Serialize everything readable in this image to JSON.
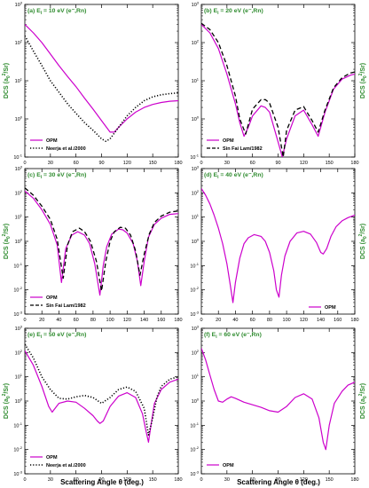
{
  "figure": {
    "xlabel": "Scattering Angle θ (deg.)",
    "ylabel_prefix": "DCS (a",
    "ylabel_sub": "0",
    "ylabel_sup": "2",
    "ylabel_suffix": "/Sr)"
  },
  "colors": {
    "opm": "#cc00cc",
    "reference": "#000000",
    "label_green": "#2e8b2e"
  },
  "chart_data": [
    {
      "type": "line",
      "id": "a",
      "title_prefix": "(a) E",
      "title_sub": "i",
      "title_suffix": " = 10 eV (e⁻,Rn)",
      "xlim": [
        0,
        180
      ],
      "ylim": [
        -1,
        3
      ],
      "yscale": "log",
      "xticks": [
        0,
        30,
        60,
        90,
        120,
        150,
        180
      ],
      "grid": false,
      "legend_position": "bottom-left",
      "series": [
        {
          "name": "OPM",
          "style": "solid",
          "x": [
            0,
            10,
            20,
            30,
            40,
            50,
            60,
            70,
            80,
            90,
            100,
            105,
            110,
            120,
            130,
            140,
            150,
            160,
            170,
            180
          ],
          "y": [
            300,
            180,
            100,
            50,
            25,
            13,
            7,
            3.5,
            1.8,
            0.9,
            0.45,
            0.45,
            0.6,
            1.0,
            1.5,
            2.0,
            2.4,
            2.7,
            2.9,
            3.0
          ]
        },
        {
          "name": "Neerja et al./2000",
          "style": "dotted",
          "x": [
            0,
            10,
            20,
            30,
            40,
            50,
            60,
            70,
            80,
            90,
            95,
            100,
            110,
            120,
            130,
            140,
            150,
            160,
            170,
            180
          ],
          "y": [
            150,
            60,
            25,
            10,
            5,
            2.5,
            1.4,
            0.8,
            0.5,
            0.3,
            0.26,
            0.3,
            0.6,
            1.2,
            2.0,
            3.0,
            3.8,
            4.3,
            4.6,
            4.8
          ]
        }
      ]
    },
    {
      "type": "line",
      "id": "b",
      "title_prefix": "(b) E",
      "title_sub": "i",
      "title_suffix": " = 20 eV (e⁻,Rn)",
      "xlim": [
        0,
        180
      ],
      "ylim": [
        -1,
        3
      ],
      "yscale": "log",
      "xticks": [
        0,
        30,
        60,
        90,
        120,
        150,
        180
      ],
      "grid": false,
      "legend_position": "bottom-left",
      "series": [
        {
          "name": "OPM",
          "style": "solid",
          "x": [
            0,
            10,
            20,
            30,
            40,
            45,
            50,
            55,
            60,
            70,
            75,
            80,
            90,
            95,
            100,
            110,
            120,
            130,
            137,
            145,
            155,
            165,
            175,
            180
          ],
          "y": [
            300,
            180,
            70,
            15,
            2.5,
            0.8,
            0.35,
            0.6,
            1.2,
            2.2,
            2.0,
            1.5,
            0.25,
            0.06,
            0.3,
            1.2,
            1.7,
            0.7,
            0.35,
            1.5,
            6,
            11,
            14,
            15
          ]
        },
        {
          "name": "Sin Fai Lam/1982",
          "style": "dashed",
          "x": [
            0,
            10,
            20,
            30,
            40,
            45,
            52,
            60,
            70,
            75,
            80,
            90,
            96,
            100,
            110,
            120,
            130,
            137,
            145,
            155,
            165,
            175,
            180
          ],
          "y": [
            320,
            220,
            100,
            25,
            4,
            1.0,
            0.4,
            1.8,
            3.2,
            3.2,
            2.6,
            0.6,
            0.1,
            0.5,
            1.7,
            2.1,
            0.9,
            0.45,
            1.7,
            6.5,
            12,
            16,
            17
          ]
        }
      ]
    },
    {
      "type": "line",
      "id": "c",
      "title_prefix": "(c) E",
      "title_sub": "i",
      "title_suffix": " = 30 eV (e⁻,Rn)",
      "xlim": [
        0,
        180
      ],
      "ylim": [
        -3,
        3
      ],
      "yscale": "log",
      "xticks": [
        0,
        20,
        40,
        60,
        80,
        100,
        120,
        140,
        160,
        180
      ],
      "grid": false,
      "legend_position": "bottom-left",
      "series": [
        {
          "name": "OPM",
          "style": "solid",
          "x": [
            0,
            10,
            20,
            30,
            38,
            43,
            48,
            55,
            62,
            70,
            76,
            82,
            88,
            92,
            96,
            102,
            110,
            115,
            120,
            127,
            132,
            136,
            140,
            145,
            152,
            160,
            170,
            180
          ],
          "y": [
            120,
            60,
            20,
            5,
            0.7,
            0.02,
            0.5,
            1.8,
            2.5,
            1.8,
            0.8,
            0.12,
            0.006,
            0.1,
            0.6,
            2.0,
            3.2,
            3.0,
            2.2,
            0.8,
            0.15,
            0.015,
            0.15,
            1.5,
            5,
            9,
            13,
            14
          ]
        },
        {
          "name": "Sin Fai Lam/1982",
          "style": "dashed",
          "x": [
            0,
            10,
            20,
            30,
            38,
            45,
            50,
            56,
            64,
            70,
            77,
            84,
            90,
            95,
            100,
            105,
            112,
            118,
            124,
            130,
            135,
            140,
            146,
            152,
            160,
            170,
            180
          ],
          "y": [
            160,
            80,
            28,
            8,
            1.2,
            0.03,
            0.7,
            2.5,
            3.5,
            2.5,
            1.0,
            0.15,
            0.009,
            0.15,
            1.0,
            2.5,
            3.8,
            3.5,
            1.8,
            0.4,
            0.04,
            0.3,
            2.0,
            6,
            11,
            16,
            18
          ]
        }
      ]
    },
    {
      "type": "line",
      "id": "d",
      "title_prefix": "(d) E",
      "title_sub": "i",
      "title_suffix": " = 40 eV (e⁻,Rn)",
      "xlim": [
        0,
        180
      ],
      "ylim": [
        -3,
        3
      ],
      "yscale": "log",
      "xticks": [
        0,
        20,
        40,
        60,
        80,
        100,
        120,
        140,
        160,
        180
      ],
      "grid": false,
      "legend_position": "bottom-right",
      "series": [
        {
          "name": "OPM",
          "style": "solid",
          "x": [
            0,
            5,
            10,
            15,
            20,
            25,
            30,
            34,
            37,
            40,
            45,
            50,
            55,
            62,
            70,
            75,
            80,
            85,
            88,
            91,
            94,
            98,
            104,
            112,
            120,
            128,
            135,
            140,
            143,
            147,
            152,
            158,
            165,
            172,
            180
          ],
          "y": [
            150,
            80,
            35,
            12,
            3.5,
            0.8,
            0.12,
            0.015,
            0.003,
            0.02,
            0.2,
            0.8,
            1.4,
            1.9,
            1.6,
            1.0,
            0.35,
            0.06,
            0.01,
            0.005,
            0.04,
            0.25,
            1.0,
            2.2,
            2.6,
            2.0,
            0.9,
            0.35,
            0.3,
            0.5,
            1.6,
            4,
            7,
            9.5,
            12
          ]
        }
      ]
    },
    {
      "type": "line",
      "id": "e",
      "title_prefix": "(e) E",
      "title_sub": "i",
      "title_suffix": " = 50 eV (e⁻,Rn)",
      "xlim": [
        0,
        180
      ],
      "ylim": [
        -3,
        3
      ],
      "yscale": "log",
      "xticks": [
        0,
        30,
        60,
        90,
        120,
        150,
        180
      ],
      "grid": false,
      "legend_position": "bottom-left",
      "series": [
        {
          "name": "OPM",
          "style": "solid",
          "x": [
            0,
            10,
            20,
            28,
            32,
            40,
            50,
            60,
            70,
            80,
            85,
            88,
            92,
            100,
            110,
            120,
            130,
            138,
            142,
            145,
            148,
            152,
            160,
            170,
            180
          ],
          "y": [
            120,
            30,
            4,
            0.6,
            0.35,
            0.8,
            1.0,
            0.9,
            0.5,
            0.25,
            0.15,
            0.12,
            0.15,
            0.6,
            1.6,
            2.2,
            1.4,
            0.3,
            0.06,
            0.02,
            0.1,
            0.8,
            3,
            6,
            8
          ]
        },
        {
          "name": "Neerja et al./2000",
          "style": "dotted",
          "x": [
            0,
            10,
            20,
            30,
            40,
            50,
            60,
            70,
            80,
            90,
            100,
            110,
            120,
            130,
            140,
            145,
            150,
            155,
            160,
            170,
            180
          ],
          "y": [
            220,
            60,
            10,
            3,
            1.3,
            1.2,
            1.5,
            1.7,
            1.4,
            0.8,
            1.4,
            3.0,
            3.8,
            2.5,
            0.5,
            0.04,
            0.2,
            1.5,
            4,
            8,
            10
          ]
        }
      ]
    },
    {
      "type": "line",
      "id": "f",
      "title_prefix": "(f) E",
      "title_sub": "i",
      "title_suffix": " = 60 eV (e⁻,Rn)",
      "xlim": [
        0,
        180
      ],
      "ylim": [
        -3,
        3
      ],
      "yscale": "log",
      "xticks": [
        0,
        30,
        60,
        90,
        120,
        150,
        180
      ],
      "grid": false,
      "legend_position": "bottom-left",
      "series": [
        {
          "name": "OPM",
          "style": "solid",
          "x": [
            0,
            5,
            10,
            15,
            20,
            25,
            30,
            35,
            40,
            50,
            60,
            70,
            80,
            90,
            100,
            110,
            120,
            130,
            138,
            143,
            146,
            150,
            156,
            165,
            172,
            180
          ],
          "y": [
            150,
            50,
            12,
            3,
            1.0,
            0.9,
            1.2,
            1.5,
            1.3,
            0.9,
            0.7,
            0.55,
            0.4,
            0.35,
            0.6,
            1.4,
            2.0,
            1.2,
            0.2,
            0.02,
            0.01,
            0.1,
            0.8,
            2.5,
            4.5,
            6
          ]
        }
      ]
    }
  ]
}
